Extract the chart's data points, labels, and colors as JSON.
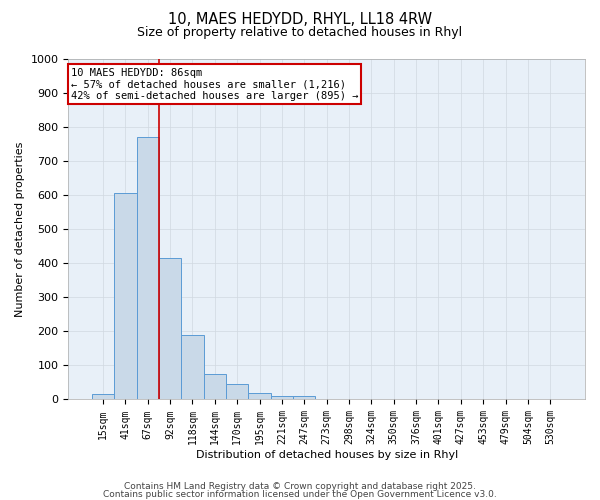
{
  "title1": "10, MAES HEDYDD, RHYL, LL18 4RW",
  "title2": "Size of property relative to detached houses in Rhyl",
  "xlabel": "Distribution of detached houses by size in Rhyl",
  "ylabel": "Number of detached properties",
  "categories": [
    "15sqm",
    "41sqm",
    "67sqm",
    "92sqm",
    "118sqm",
    "144sqm",
    "170sqm",
    "195sqm",
    "221sqm",
    "247sqm",
    "273sqm",
    "298sqm",
    "324sqm",
    "350sqm",
    "376sqm",
    "401sqm",
    "427sqm",
    "453sqm",
    "479sqm",
    "504sqm",
    "530sqm"
  ],
  "values": [
    15,
    605,
    770,
    415,
    190,
    75,
    45,
    20,
    10,
    10,
    0,
    0,
    0,
    0,
    0,
    0,
    0,
    0,
    0,
    0,
    0
  ],
  "bar_color": "#c9d9e8",
  "bar_edge_color": "#5b9bd5",
  "grid_color": "#d0d8e0",
  "background_color": "#e8f0f8",
  "vline_x": 2.5,
  "vline_color": "#cc0000",
  "annotation_text": "10 MAES HEDYDD: 86sqm\n← 57% of detached houses are smaller (1,216)\n42% of semi-detached houses are larger (895) →",
  "annotation_box_color": "#cc0000",
  "ylim": [
    0,
    1000
  ],
  "yticks": [
    0,
    100,
    200,
    300,
    400,
    500,
    600,
    700,
    800,
    900,
    1000
  ],
  "footer1": "Contains HM Land Registry data © Crown copyright and database right 2025.",
  "footer2": "Contains public sector information licensed under the Open Government Licence v3.0.",
  "title_fontsize": 10.5,
  "subtitle_fontsize": 9,
  "tick_fontsize": 7,
  "label_fontsize": 8,
  "footer_fontsize": 6.5,
  "annot_fontsize": 7.5
}
